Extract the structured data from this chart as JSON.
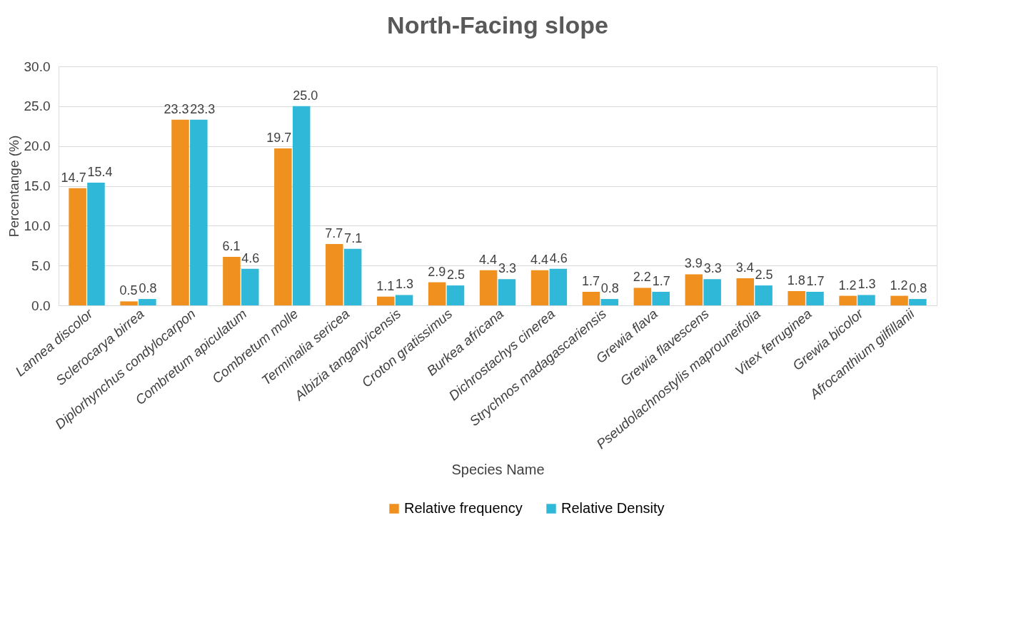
{
  "chart_data": {
    "type": "bar",
    "title": "North-Facing slope",
    "xlabel": "Species Name",
    "ylabel": "Percentange (%)",
    "categories": [
      "Lannea discolor",
      "Sclerocarya birrea",
      "Diplorhynchus condylocarpon",
      "Combretum apiculatum",
      "Combretum molle",
      "Terminalia sericea",
      "Albizia tanganyicensis",
      "Croton gratissimus",
      "Burkea africana",
      "Dichrostachys cinerea",
      "Strychnos madagascariensis",
      "Grewia flava",
      "Grewia flavescens",
      "Pseudolachnostylis maprouneifolia",
      "Vitex ferruginea",
      "Grewia bicolor",
      "Afrocanthium gilfillanii"
    ],
    "series": [
      {
        "name": "Relative frequency",
        "color": "#f0901e",
        "values": [
          14.7,
          0.5,
          23.3,
          6.1,
          19.7,
          7.7,
          1.1,
          2.9,
          4.4,
          4.4,
          1.7,
          2.2,
          3.9,
          3.4,
          1.8,
          1.2,
          1.2
        ],
        "value_labels": [
          "14.7",
          "0.5",
          "23.3",
          "6.1",
          "19.7",
          "7.7",
          "1.1",
          "2.9",
          "4.4",
          "4.4",
          "1.7",
          "2.2",
          "3.9",
          "3.4",
          "1.8",
          "1.2",
          "1.2"
        ]
      },
      {
        "name": "Relative Density",
        "color": "#2fb8d8",
        "values": [
          15.4,
          0.8,
          23.3,
          4.6,
          25.0,
          7.1,
          1.3,
          2.5,
          3.3,
          4.6,
          0.8,
          1.7,
          3.3,
          2.5,
          1.7,
          1.3,
          0.8
        ],
        "value_labels": [
          "15.4",
          "0.8",
          "23.3",
          "4.6",
          "25.0",
          "7.1",
          "1.3",
          "2.5",
          "3.3",
          "4.6",
          "0.8",
          "1.7",
          "3.3",
          "2.5",
          "1.7",
          "1.3",
          "0.8"
        ]
      }
    ],
    "ylim": [
      0,
      30
    ],
    "yticks": [
      {
        "value": 0,
        "label": "0.0"
      },
      {
        "value": 5,
        "label": "5.0"
      },
      {
        "value": 10,
        "label": "10.0"
      },
      {
        "value": 15,
        "label": "15.0"
      },
      {
        "value": 20,
        "label": "20.0"
      },
      {
        "value": 25,
        "label": "25.0"
      },
      {
        "value": 30,
        "label": "30.0"
      }
    ],
    "grid": "y",
    "legend": "bottom"
  }
}
